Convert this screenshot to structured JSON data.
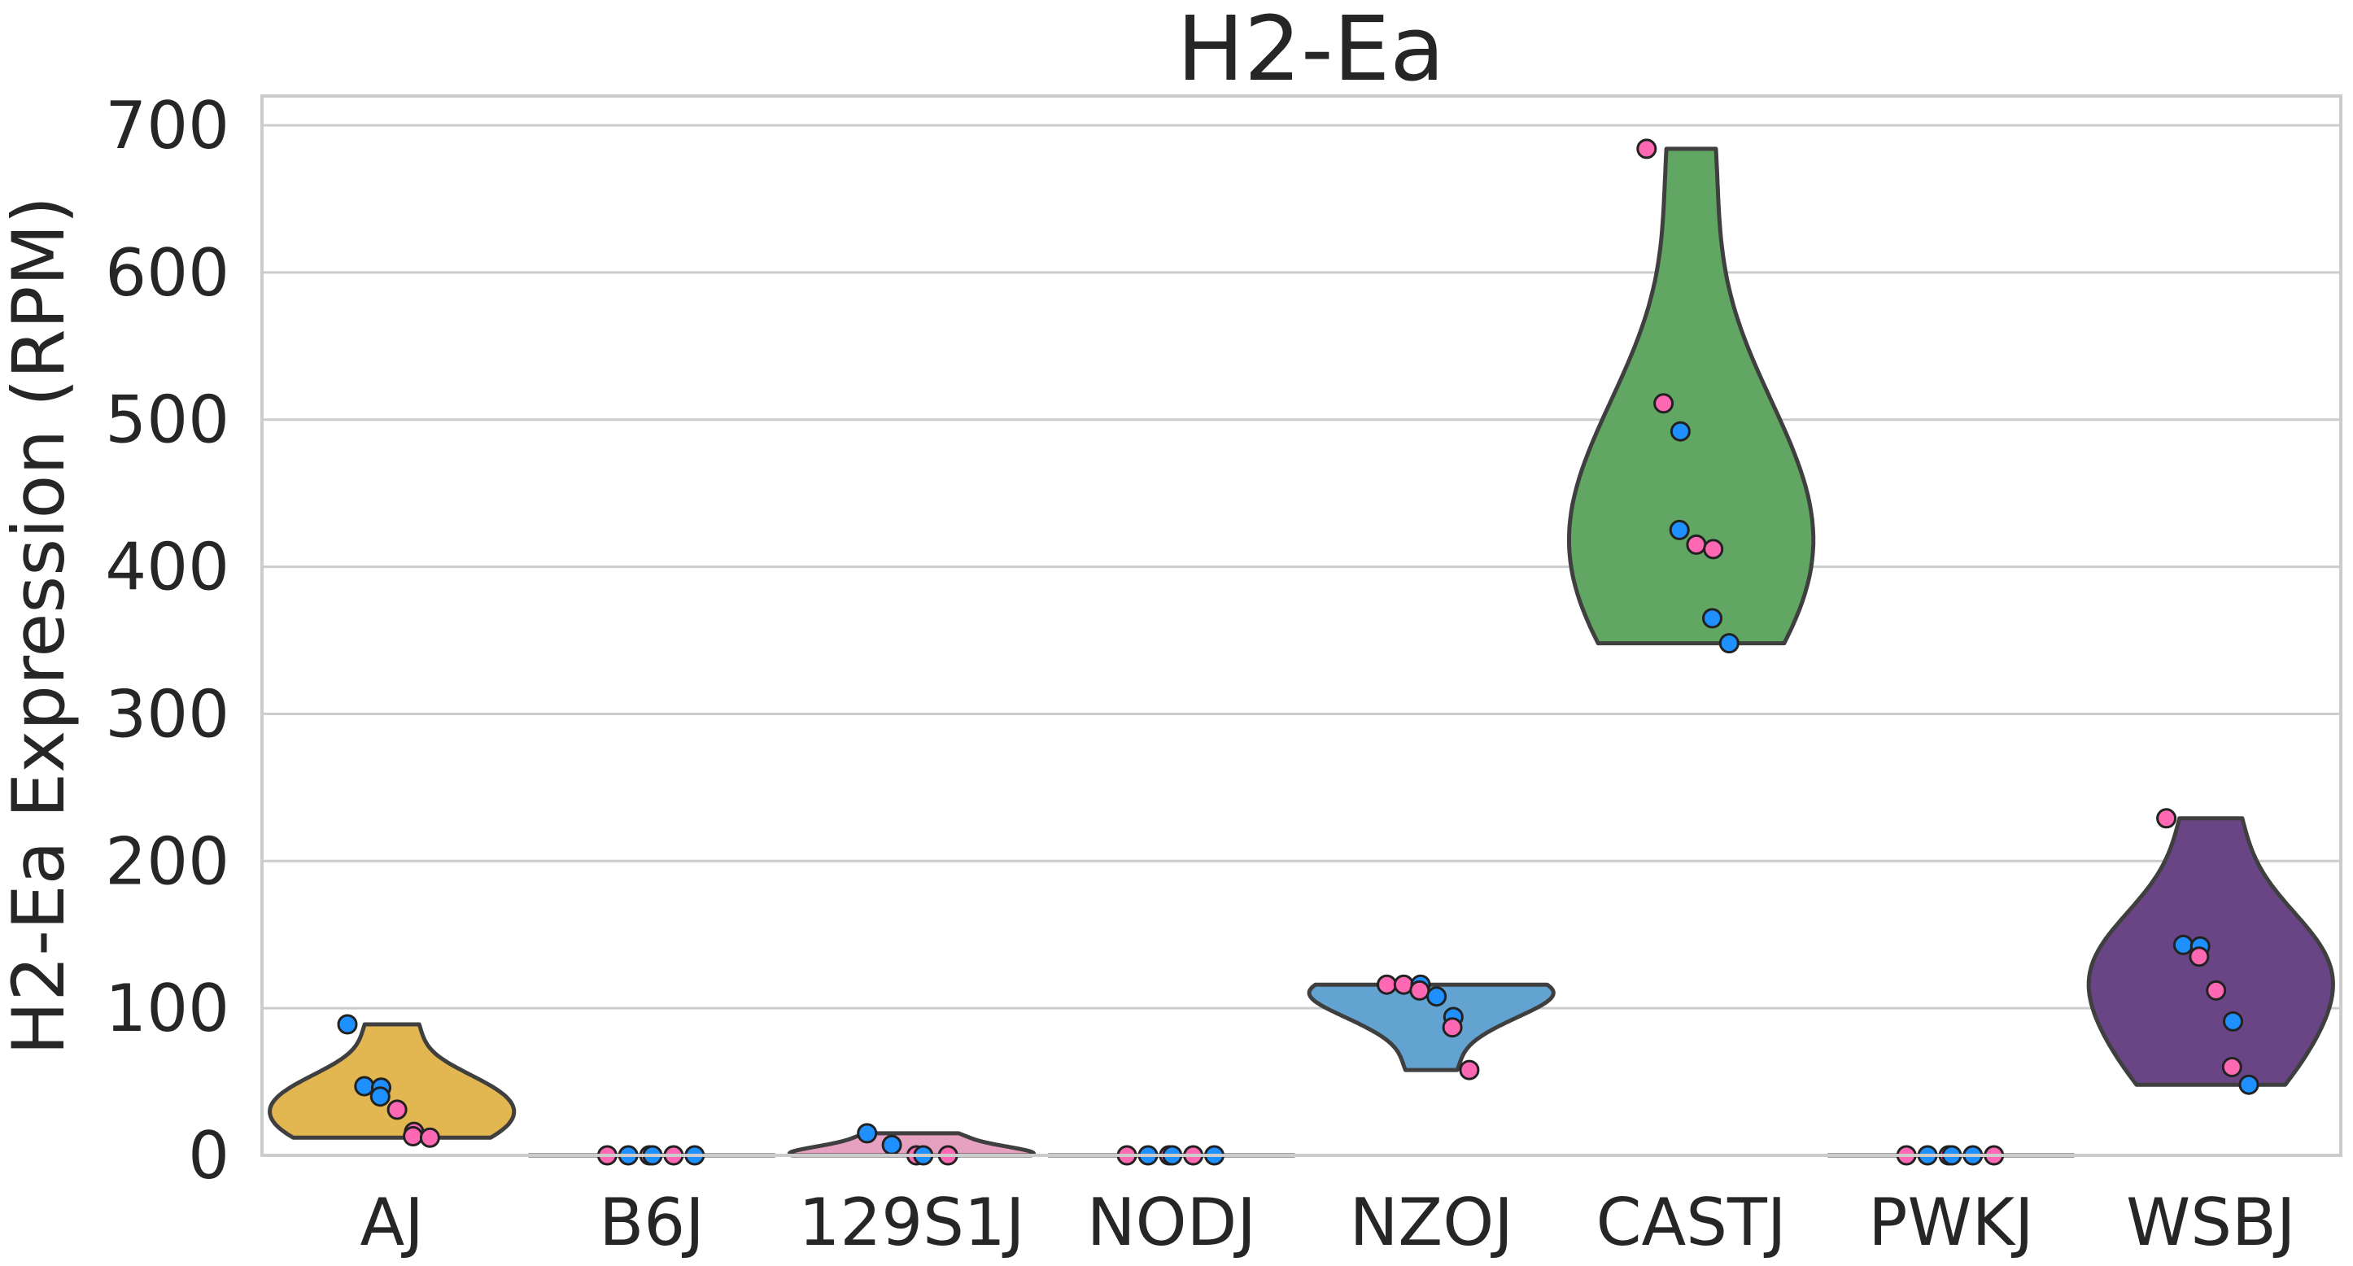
{
  "chart_data": {
    "type": "violin",
    "title": "H2-Ea",
    "xlabel": "",
    "ylabel": "H2-Ea Expression (RPM)",
    "ylim": [
      0,
      700
    ],
    "yticks": [
      0,
      100,
      200,
      300,
      400,
      500,
      600,
      700
    ],
    "grid": true,
    "categories": [
      "AJ",
      "B6J",
      "129S1J",
      "NODJ",
      "NZOJ",
      "CASTJ",
      "PWKJ",
      "WSBJ"
    ],
    "point_colors": {
      "pink": "#FF69B4",
      "blue": "#1E90FF"
    },
    "groups": [
      {
        "name": "AJ",
        "color": "#E2B651",
        "range": [
          12,
          89
        ],
        "points": [
          {
            "y": 89,
            "c": "blue"
          },
          {
            "y": 47,
            "c": "blue"
          },
          {
            "y": 46,
            "c": "blue"
          },
          {
            "y": 40,
            "c": "blue"
          },
          {
            "y": 31,
            "c": "pink"
          },
          {
            "y": 16,
            "c": "pink"
          },
          {
            "y": 13,
            "c": "pink"
          },
          {
            "y": 12,
            "c": "pink"
          }
        ]
      },
      {
        "name": "B6J",
        "color": "#C8C8C8",
        "range": [
          0,
          0
        ],
        "points": [
          {
            "y": 0,
            "c": "pink"
          },
          {
            "y": 0,
            "c": "blue"
          },
          {
            "y": 0,
            "c": "pink"
          },
          {
            "y": 0,
            "c": "blue"
          },
          {
            "y": 0,
            "c": "pink"
          },
          {
            "y": 0,
            "c": "blue"
          }
        ]
      },
      {
        "name": "129S1J",
        "color": "#E7A1C0",
        "range": [
          0,
          15
        ],
        "points": [
          {
            "y": 15,
            "c": "blue"
          },
          {
            "y": 7,
            "c": "blue"
          },
          {
            "y": 0,
            "c": "pink"
          },
          {
            "y": 0,
            "c": "blue"
          },
          {
            "y": 0,
            "c": "pink"
          }
        ]
      },
      {
        "name": "NODJ",
        "color": "#C8C8C8",
        "range": [
          0,
          0
        ],
        "points": [
          {
            "y": 0,
            "c": "pink"
          },
          {
            "y": 0,
            "c": "blue"
          },
          {
            "y": 0,
            "c": "pink"
          },
          {
            "y": 0,
            "c": "blue"
          },
          {
            "y": 0,
            "c": "pink"
          },
          {
            "y": 0,
            "c": "blue"
          }
        ]
      },
      {
        "name": "NZOJ",
        "color": "#62A3D1",
        "range": [
          58,
          116
        ],
        "points": [
          {
            "y": 116,
            "c": "pink"
          },
          {
            "y": 116,
            "c": "pink"
          },
          {
            "y": 116,
            "c": "blue"
          },
          {
            "y": 112,
            "c": "pink"
          },
          {
            "y": 108,
            "c": "blue"
          },
          {
            "y": 94,
            "c": "blue"
          },
          {
            "y": 87,
            "c": "pink"
          },
          {
            "y": 58,
            "c": "pink"
          }
        ]
      },
      {
        "name": "CASTJ",
        "color": "#61A663",
        "range": [
          348,
          684
        ],
        "points": [
          {
            "y": 684,
            "c": "pink"
          },
          {
            "y": 511,
            "c": "pink"
          },
          {
            "y": 492,
            "c": "blue"
          },
          {
            "y": 425,
            "c": "blue"
          },
          {
            "y": 415,
            "c": "pink"
          },
          {
            "y": 412,
            "c": "pink"
          },
          {
            "y": 365,
            "c": "blue"
          },
          {
            "y": 348,
            "c": "blue"
          }
        ]
      },
      {
        "name": "PWKJ",
        "color": "#C8C8C8",
        "range": [
          0,
          0
        ],
        "points": [
          {
            "y": 0,
            "c": "pink"
          },
          {
            "y": 0,
            "c": "blue"
          },
          {
            "y": 0,
            "c": "pink"
          },
          {
            "y": 0,
            "c": "blue"
          },
          {
            "y": 0,
            "c": "blue"
          },
          {
            "y": 0,
            "c": "pink"
          }
        ]
      },
      {
        "name": "WSBJ",
        "color": "#6A4586",
        "range": [
          48,
          229
        ],
        "points": [
          {
            "y": 229,
            "c": "pink"
          },
          {
            "y": 143,
            "c": "blue"
          },
          {
            "y": 142,
            "c": "blue"
          },
          {
            "y": 135,
            "c": "pink"
          },
          {
            "y": 112,
            "c": "pink"
          },
          {
            "y": 91,
            "c": "blue"
          },
          {
            "y": 60,
            "c": "pink"
          },
          {
            "y": 48,
            "c": "blue"
          }
        ]
      }
    ]
  }
}
